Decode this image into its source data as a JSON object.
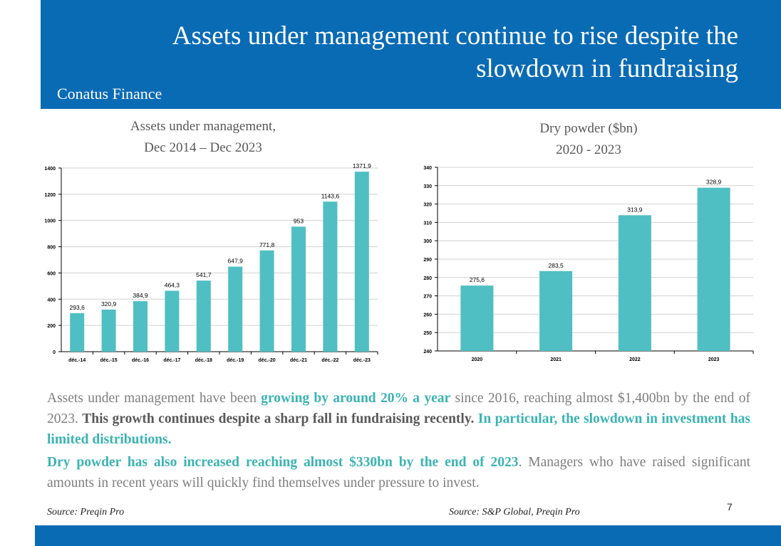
{
  "header": {
    "title_line1": "Assets under management continue to rise despite the",
    "title_line2": "slowdown in fundraising",
    "brand": "Conatus Finance"
  },
  "colors": {
    "brand_blue": "#0a6bb5",
    "bar_teal": "#4fbfc3",
    "highlight_teal": "#3bb3b3"
  },
  "charts": {
    "aum": {
      "title_line1": "Assets under management,",
      "title_line2": "Dec 2014 – Dec 2023"
    },
    "dry": {
      "title_line1": "Dry powder ($bn)",
      "title_line2": "2020 - 2023"
    }
  },
  "chart_data": [
    {
      "type": "bar",
      "title": "Assets under management, Dec 2014 – Dec 2023",
      "categories": [
        "déc.-14",
        "déc.-15",
        "déc.-16",
        "déc.-17",
        "déc.-18",
        "déc.-19",
        "déc.-20",
        "déc.-21",
        "déc.-22",
        "déc.-23"
      ],
      "values": [
        293.6,
        320.9,
        384.9,
        464.3,
        541.7,
        647.9,
        771.8,
        953,
        1143.6,
        1371.9
      ],
      "labels": [
        "293,6",
        "320,9",
        "384,9",
        "464,3",
        "541,7",
        "647,9",
        "771,8",
        "953",
        "1143,6",
        "1371,9"
      ],
      "yticks": [
        "0",
        "200",
        "400",
        "600",
        "800",
        "1000",
        "1200",
        "1400"
      ],
      "ylim": [
        0,
        1400
      ],
      "grid": true
    },
    {
      "type": "bar",
      "title": "Dry powder ($bn) 2020 - 2023",
      "categories": [
        "2020",
        "2021",
        "2022",
        "2023"
      ],
      "values": [
        275.6,
        283.5,
        313.9,
        328.9
      ],
      "labels": [
        "275,6",
        "283,5",
        "313,9",
        "328,9"
      ],
      "yticks": [
        "240",
        "250",
        "260",
        "270",
        "280",
        "290",
        "300",
        "310",
        "320",
        "330",
        "340"
      ],
      "ylim": [
        240,
        340
      ],
      "grid": true
    }
  ],
  "text": {
    "p1_a": "Assets under management have been ",
    "p1_b": "growing by around 20% a year",
    "p1_c": " since 2016, reaching almost $1,400bn by the end of 2023. ",
    "p1_d": "This growth continues despite a sharp fall in fundraising recently.",
    "p1_e": " ",
    "p1_f": "In particular, the slowdown in investment has limited distributions.",
    "p2_a": "Dry powder has also increased reaching almost $330bn by the end of 2023",
    "p2_b": ". Managers who have raised significant amounts in recent years will quickly find themselves under pressure to invest."
  },
  "footer": {
    "source_left": "Source: Preqin Pro",
    "source_right": "Source: S&P Global, Preqin Pro",
    "page_number": "7"
  }
}
